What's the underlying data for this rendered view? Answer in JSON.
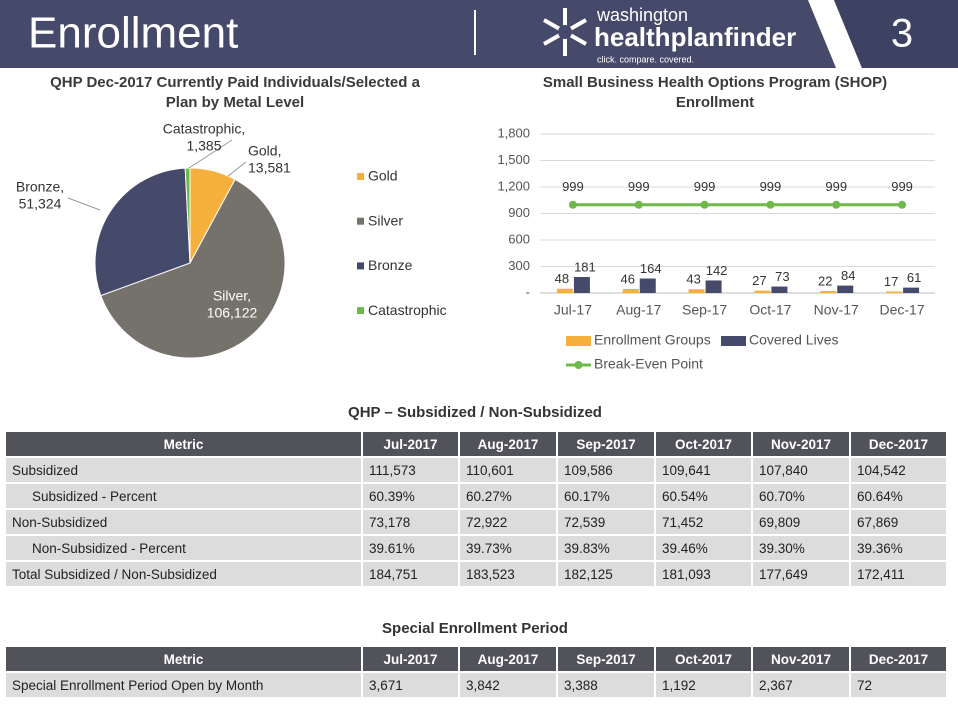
{
  "header": {
    "title": "Enrollment",
    "logo_top": "washington",
    "logo_main": "healthplanfinder",
    "logo_tagline": "click. compare. covered.",
    "page_number": "3"
  },
  "chart_data": [
    {
      "type": "pie",
      "title": "QHP Dec-2017 Currently Paid Individuals/Selected a Plan by Metal Level",
      "categories": [
        "Gold",
        "Silver",
        "Bronze",
        "Catastrophic"
      ],
      "slice_labels": [
        "Gold,",
        "Silver,",
        "Bronze,",
        "Catastrophic,"
      ],
      "values": [
        13581,
        106122,
        51324,
        1385
      ],
      "value_labels": [
        "13,581",
        "106,122",
        "51,324",
        "1,385"
      ],
      "colors": [
        "#f6b03c",
        "#75726b",
        "#454a6b",
        "#6fb84a"
      ],
      "legend": "right"
    },
    {
      "type": "bar",
      "title": "Small Business Health Options Program (SHOP) Enrollment",
      "categories": [
        "Jul-17",
        "Aug-17",
        "Sep-17",
        "Oct-17",
        "Nov-17",
        "Dec-17"
      ],
      "series": [
        {
          "name": "Enrollment Groups",
          "type": "bar",
          "color": "#f6b03c",
          "values": [
            48,
            46,
            43,
            27,
            22,
            17
          ]
        },
        {
          "name": "Covered Lives",
          "type": "bar",
          "color": "#454a6b",
          "values": [
            181,
            164,
            142,
            73,
            84,
            61
          ]
        },
        {
          "name": "Break-Even Point",
          "type": "line",
          "color": "#6fb84a",
          "values": [
            999,
            999,
            999,
            999,
            999,
            999
          ]
        }
      ],
      "ylim": [
        0,
        1800
      ],
      "yticks": [
        {
          "value": 0,
          "label": "-"
        },
        300,
        600,
        900,
        {
          "value": 1200,
          "label": "1,200"
        },
        {
          "value": 1500,
          "label": "1,500"
        },
        {
          "value": 1800,
          "label": "1,800"
        }
      ],
      "grid": true,
      "legend": "bottom"
    }
  ],
  "tables": [
    {
      "title": "QHP – Subsidized / Non-Subsidized",
      "header": [
        "Metric",
        "Jul-2017",
        "Aug-2017",
        "Sep-2017",
        "Oct-2017",
        "Nov-2017",
        "Dec-2017"
      ],
      "indented_rows": [
        1,
        3
      ],
      "rows": [
        [
          "Subsidized",
          "111,573",
          "110,601",
          "109,586",
          "109,641",
          "107,840",
          "104,542"
        ],
        [
          "Subsidized - Percent",
          "60.39%",
          "60.27%",
          "60.17%",
          "60.54%",
          "60.70%",
          "60.64%"
        ],
        [
          "Non-Subsidized",
          "73,178",
          "72,922",
          "72,539",
          "71,452",
          "69,809",
          "67,869"
        ],
        [
          "Non-Subsidized - Percent",
          "39.61%",
          "39.73%",
          "39.83%",
          "39.46%",
          "39.30%",
          "39.36%"
        ],
        [
          "Total Subsidized / Non-Subsidized",
          "184,751",
          "183,523",
          "182,125",
          "181,093",
          "177,649",
          "172,411"
        ]
      ]
    },
    {
      "title": "Special Enrollment Period",
      "header": [
        "Metric",
        "Jul-2017",
        "Aug-2017",
        "Sep-2017",
        "Oct-2017",
        "Nov-2017",
        "Dec-2017"
      ],
      "indented_rows": [],
      "rows": [
        [
          "Special Enrollment Period Open by Month",
          "3,671",
          "3,842",
          "3,388",
          "1,192",
          "2,367",
          "72"
        ]
      ]
    }
  ]
}
